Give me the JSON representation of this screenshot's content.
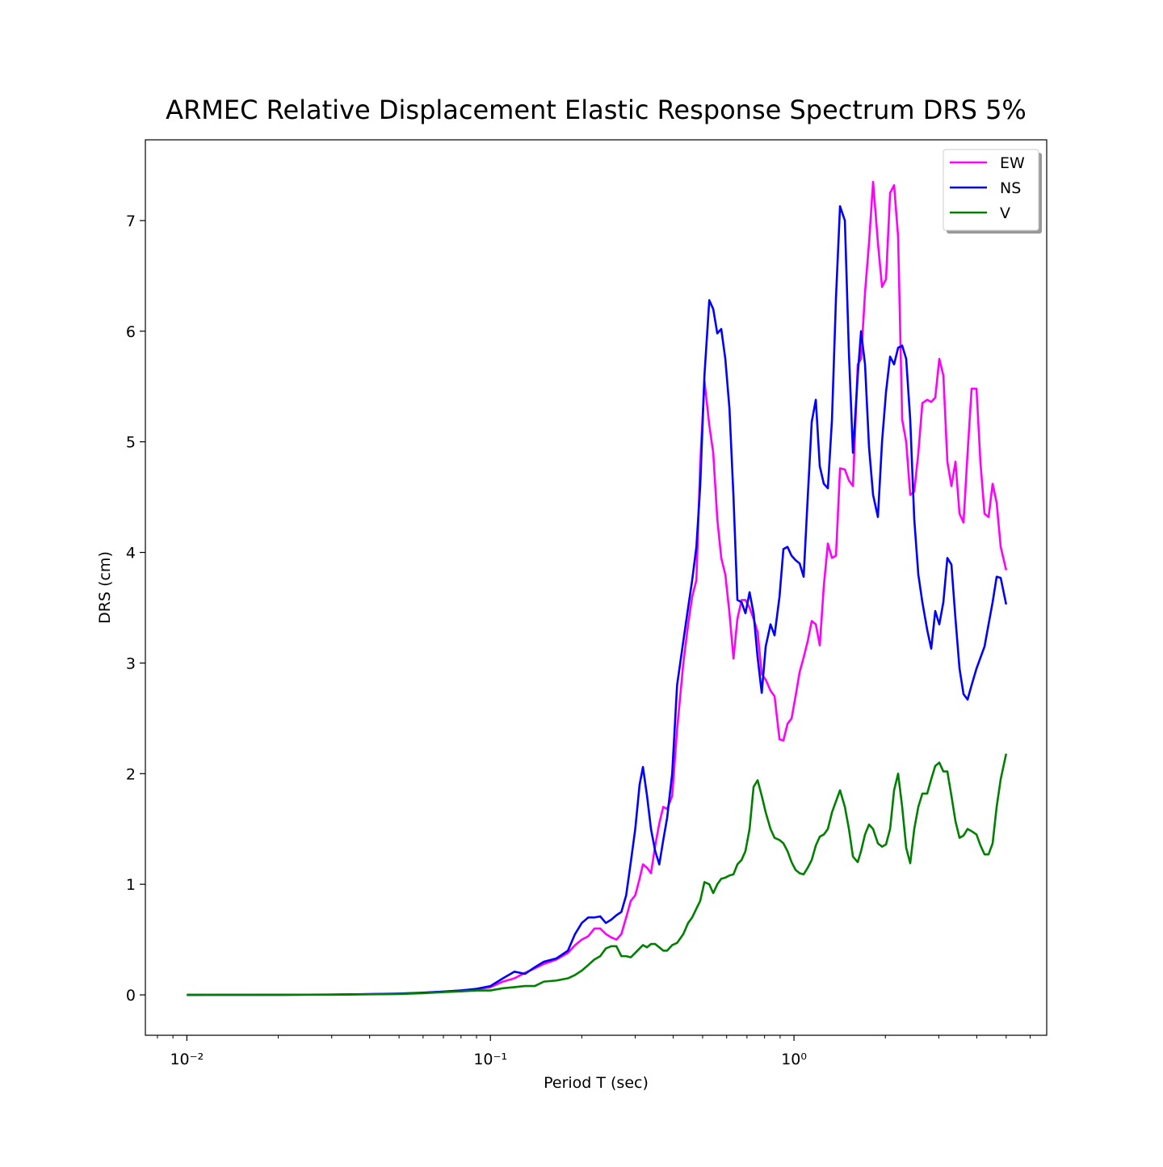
{
  "chart_data": {
    "type": "line",
    "title": "ARMEC Relative Displacement Elastic Response Spectrum DRS 5%",
    "xlabel": "Period T (sec)",
    "ylabel": "DRS (cm)",
    "xscale": "log",
    "legend": "upper right",
    "xlim": [
      0.0073,
      6.8
    ],
    "ylim": [
      -0.365,
      7.73
    ],
    "xticks": [
      {
        "value": 0.01,
        "label": "10⁻²"
      },
      {
        "value": 0.1,
        "label": "10⁻¹"
      },
      {
        "value": 1,
        "label": "10⁰"
      }
    ],
    "xminorticks": [
      0.008,
      0.009,
      0.02,
      0.03,
      0.04,
      0.05,
      0.06,
      0.07,
      0.08,
      0.09,
      0.2,
      0.3,
      0.4,
      0.5,
      0.6,
      0.7,
      0.8,
      0.9,
      2,
      3,
      4,
      5,
      6
    ],
    "yticks": [
      0,
      1,
      2,
      3,
      4,
      5,
      6,
      7
    ],
    "x": [
      0.01,
      0.02,
      0.03,
      0.04,
      0.05,
      0.06,
      0.07,
      0.08,
      0.09,
      0.1,
      0.11,
      0.12,
      0.13,
      0.14,
      0.15,
      0.165,
      0.18,
      0.19,
      0.2,
      0.21,
      0.22,
      0.23,
      0.24,
      0.25,
      0.26,
      0.27,
      0.28,
      0.29,
      0.3,
      0.31,
      0.318,
      0.328,
      0.338,
      0.349,
      0.36,
      0.371,
      0.382,
      0.397,
      0.412,
      0.432,
      0.448,
      0.462,
      0.477,
      0.491,
      0.507,
      0.526,
      0.542,
      0.559,
      0.576,
      0.594,
      0.613,
      0.632,
      0.651,
      0.672,
      0.692,
      0.714,
      0.736,
      0.759,
      0.783,
      0.807,
      0.837,
      0.863,
      0.896,
      0.923,
      0.952,
      0.982,
      1.012,
      1.044,
      1.076,
      1.11,
      1.144,
      1.18,
      1.216,
      1.254,
      1.293,
      1.334,
      1.375,
      1.418,
      1.471,
      1.517,
      1.564,
      1.622,
      1.663,
      1.714,
      1.767,
      1.822,
      1.89,
      1.95,
      2.01,
      2.073,
      2.137,
      2.203,
      2.272,
      2.342,
      2.415,
      2.49,
      2.568,
      2.648,
      2.747,
      2.832,
      2.92,
      3.011,
      3.105,
      3.201,
      3.301,
      3.404,
      3.51,
      3.618,
      3.731,
      3.847,
      3.992,
      4.116,
      4.244,
      4.375,
      4.512,
      4.652,
      4.797,
      5.0
    ],
    "series": [
      {
        "name": "EW",
        "color": "#ff00ff",
        "values": [
          0,
          0.001,
          0.003,
          0.006,
          0.01,
          0.018,
          0.028,
          0.04,
          0.05,
          0.07,
          0.12,
          0.15,
          0.2,
          0.24,
          0.28,
          0.32,
          0.38,
          0.45,
          0.5,
          0.53,
          0.6,
          0.6,
          0.55,
          0.52,
          0.5,
          0.55,
          0.7,
          0.85,
          0.9,
          1.05,
          1.18,
          1.15,
          1.1,
          1.35,
          1.55,
          1.7,
          1.68,
          1.8,
          2.4,
          3.0,
          3.35,
          3.6,
          3.75,
          4.8,
          5.55,
          5.15,
          4.9,
          4.3,
          3.95,
          3.8,
          3.45,
          3.04,
          3.4,
          3.57,
          3.57,
          3.5,
          3.4,
          3.28,
          2.9,
          2.85,
          2.75,
          2.7,
          2.31,
          2.3,
          2.45,
          2.5,
          2.7,
          2.92,
          3.05,
          3.2,
          3.38,
          3.35,
          3.16,
          3.7,
          4.08,
          3.95,
          3.97,
          4.76,
          4.75,
          4.65,
          4.6,
          5.7,
          5.75,
          6.35,
          6.8,
          7.35,
          6.8,
          6.4,
          6.47,
          7.25,
          7.32,
          6.85,
          5.2,
          5.0,
          4.52,
          4.55,
          4.9,
          5.35,
          5.38,
          5.36,
          5.4,
          5.75,
          5.6,
          4.82,
          4.6,
          4.82,
          4.35,
          4.27,
          4.9,
          5.48,
          5.48,
          4.8,
          4.35,
          4.32,
          4.62,
          4.45,
          4.05,
          3.84
        ]
      },
      {
        "name": "NS",
        "color": "#0000ff",
        "values": [
          0,
          0.001,
          0.003,
          0.007,
          0.012,
          0.02,
          0.03,
          0.04,
          0.055,
          0.08,
          0.15,
          0.21,
          0.19,
          0.25,
          0.3,
          0.33,
          0.4,
          0.55,
          0.65,
          0.7,
          0.7,
          0.71,
          0.65,
          0.68,
          0.72,
          0.75,
          0.9,
          1.2,
          1.5,
          1.9,
          2.06,
          1.8,
          1.5,
          1.3,
          1.18,
          1.4,
          1.6,
          2.0,
          2.8,
          3.2,
          3.5,
          3.75,
          4.05,
          4.6,
          5.6,
          6.28,
          6.2,
          5.98,
          6.02,
          5.75,
          5.3,
          4.5,
          3.57,
          3.55,
          3.45,
          3.64,
          3.45,
          3.05,
          2.73,
          3.15,
          3.35,
          3.25,
          3.6,
          4.03,
          4.05,
          3.97,
          3.93,
          3.9,
          3.78,
          4.5,
          5.18,
          5.38,
          4.78,
          4.62,
          4.58,
          5.2,
          6.3,
          7.13,
          7.0,
          5.8,
          4.9,
          5.6,
          6.0,
          5.7,
          4.95,
          4.52,
          4.32,
          5.0,
          5.45,
          5.77,
          5.7,
          5.85,
          5.87,
          5.75,
          5.2,
          4.3,
          3.8,
          3.55,
          3.3,
          3.13,
          3.47,
          3.35,
          3.55,
          3.95,
          3.89,
          3.4,
          2.95,
          2.72,
          2.67,
          2.8,
          2.95,
          3.05,
          3.15,
          3.35,
          3.55,
          3.78,
          3.77,
          3.53
        ]
      },
      {
        "name": "V",
        "color": "#008000",
        "values": [
          0,
          0.001,
          0.002,
          0.005,
          0.008,
          0.015,
          0.025,
          0.032,
          0.04,
          0.04,
          0.06,
          0.07,
          0.08,
          0.08,
          0.12,
          0.13,
          0.15,
          0.18,
          0.22,
          0.27,
          0.32,
          0.35,
          0.42,
          0.44,
          0.44,
          0.35,
          0.35,
          0.34,
          0.38,
          0.42,
          0.45,
          0.43,
          0.46,
          0.46,
          0.43,
          0.4,
          0.4,
          0.45,
          0.47,
          0.55,
          0.65,
          0.7,
          0.78,
          0.85,
          1.02,
          1.0,
          0.92,
          1.0,
          1.05,
          1.06,
          1.08,
          1.09,
          1.18,
          1.22,
          1.3,
          1.5,
          1.88,
          1.94,
          1.8,
          1.65,
          1.5,
          1.42,
          1.4,
          1.37,
          1.3,
          1.2,
          1.13,
          1.1,
          1.09,
          1.15,
          1.22,
          1.35,
          1.43,
          1.45,
          1.5,
          1.65,
          1.75,
          1.85,
          1.7,
          1.5,
          1.25,
          1.2,
          1.3,
          1.45,
          1.54,
          1.5,
          1.37,
          1.34,
          1.36,
          1.5,
          1.85,
          2.0,
          1.7,
          1.33,
          1.19,
          1.5,
          1.7,
          1.82,
          1.82,
          1.95,
          2.07,
          2.1,
          2.02,
          2.02,
          1.8,
          1.57,
          1.42,
          1.44,
          1.5,
          1.48,
          1.45,
          1.35,
          1.27,
          1.27,
          1.37,
          1.7,
          1.95,
          2.18
        ]
      }
    ]
  }
}
